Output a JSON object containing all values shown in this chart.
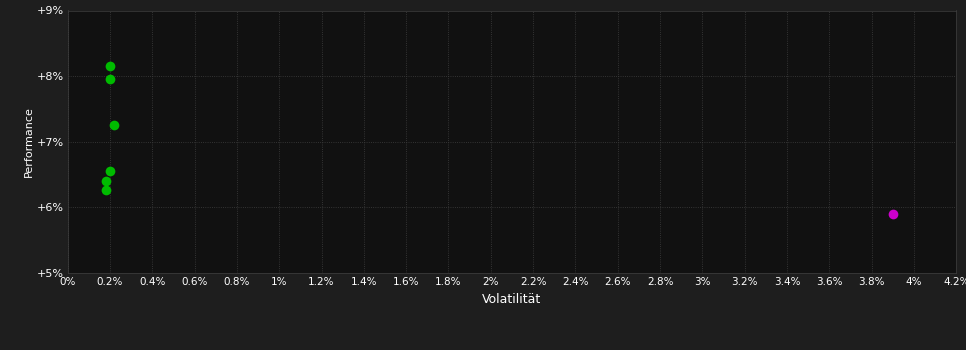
{
  "background_color": "#1e1e1e",
  "plot_bg_color": "#111111",
  "grid_color": "#404040",
  "text_color": "#ffffff",
  "xlabel": "Volatilität",
  "ylabel": "Performance",
  "xlim": [
    0.0,
    0.042
  ],
  "ylim": [
    0.05,
    0.09
  ],
  "xtick_vals": [
    0.0,
    0.002,
    0.004,
    0.006,
    0.008,
    0.01,
    0.012,
    0.014,
    0.016,
    0.018,
    0.02,
    0.022,
    0.024,
    0.026,
    0.028,
    0.03,
    0.032,
    0.034,
    0.036,
    0.038,
    0.04,
    0.042
  ],
  "xtick_labels": [
    "0%",
    "0.2%",
    "0.4%",
    "0.6%",
    "0.8%",
    "1%",
    "1.2%",
    "1.4%",
    "1.6%",
    "1.8%",
    "2%",
    "2.2%",
    "2.4%",
    "2.6%",
    "2.8%",
    "3%",
    "3.2%",
    "3.4%",
    "3.6%",
    "3.8%",
    "4%",
    "4.2%"
  ],
  "ytick_vals": [
    0.05,
    0.06,
    0.07,
    0.08,
    0.09
  ],
  "ytick_labels": [
    "+5%",
    "+6%",
    "+7%",
    "+8%",
    "+9%"
  ],
  "green_points": [
    [
      0.002,
      0.0815
    ],
    [
      0.002,
      0.0795
    ],
    [
      0.0022,
      0.0725
    ],
    [
      0.002,
      0.0655
    ],
    [
      0.0018,
      0.064
    ],
    [
      0.0018,
      0.0627
    ]
  ],
  "magenta_points": [
    [
      0.039,
      0.059
    ]
  ],
  "green_color": "#00bb00",
  "magenta_color": "#cc00cc",
  "marker_size": 7
}
